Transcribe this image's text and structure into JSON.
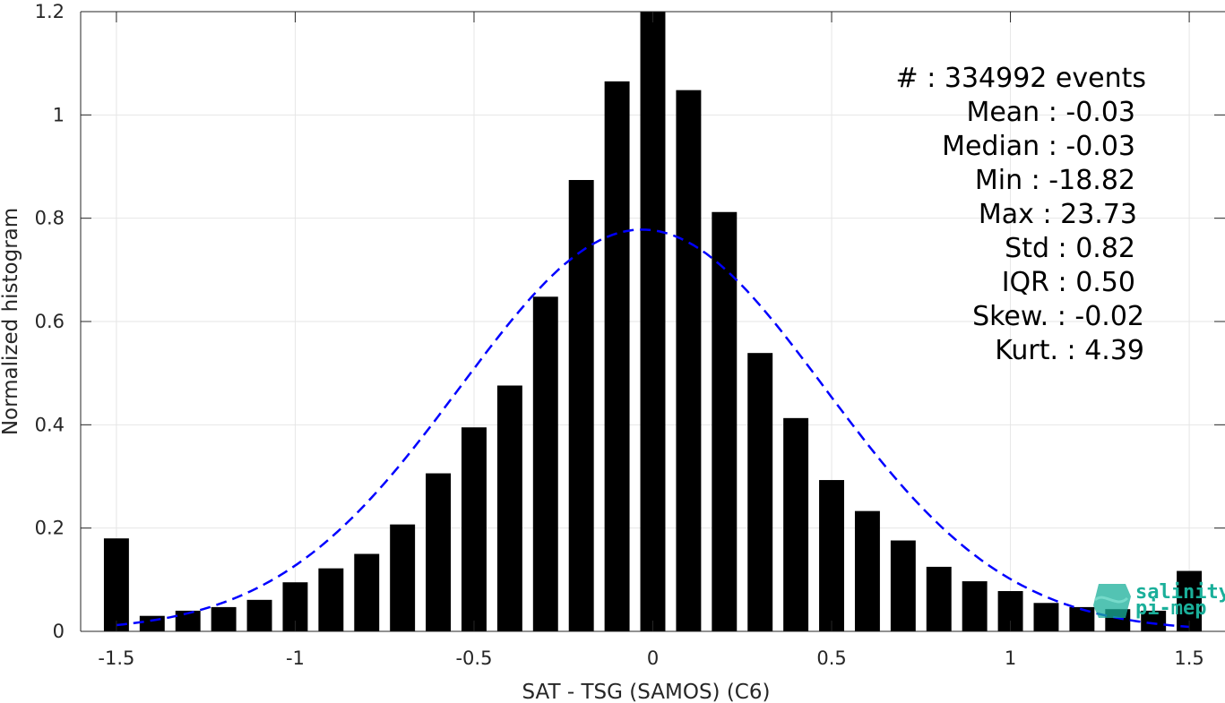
{
  "chart_data": {
    "type": "bar",
    "xlabel": "SAT - TSG (SAMOS) (C6)",
    "ylabel": "Normalized histogram",
    "xlim": [
      -1.6,
      1.6
    ],
    "ylim": [
      0,
      1.2
    ],
    "xticks": [
      -1.5,
      -1,
      -0.5,
      0,
      0.5,
      1,
      1.5
    ],
    "xtick_labels": [
      "-1.5",
      "-1",
      "-0.5",
      "0",
      "0.5",
      "1",
      "1.5"
    ],
    "yticks": [
      0,
      0.2,
      0.4,
      0.6,
      0.8,
      1,
      1.2
    ],
    "ytick_labels": [
      "0",
      "0.2",
      "0.4",
      "0.6",
      "0.8",
      "1",
      "1.2"
    ],
    "grid": true,
    "bar_color": "#000000",
    "bin_centers": [
      -1.5,
      -1.4,
      -1.3,
      -1.2,
      -1.1,
      -1.0,
      -0.9,
      -0.8,
      -0.7,
      -0.6,
      -0.5,
      -0.4,
      -0.3,
      -0.2,
      -0.1,
      0.0,
      0.1,
      0.2,
      0.3,
      0.4,
      0.5,
      0.6,
      0.7,
      0.8,
      0.9,
      1.0,
      1.1,
      1.2,
      1.3,
      1.4,
      1.5
    ],
    "values": [
      0.18,
      0.03,
      0.04,
      0.047,
      0.061,
      0.095,
      0.122,
      0.15,
      0.207,
      0.306,
      0.395,
      0.476,
      0.648,
      0.874,
      1.065,
      1.2,
      1.048,
      0.812,
      0.539,
      0.413,
      0.293,
      0.233,
      0.176,
      0.125,
      0.097,
      0.078,
      0.055,
      0.047,
      0.043,
      0.04,
      0.117
    ],
    "fit": {
      "type": "gaussian",
      "mean": -0.03,
      "std": 0.51,
      "peak": 0.778,
      "color": "#0000ff",
      "style": "dashed",
      "x_range": [
        -1.5,
        1.5
      ]
    },
    "stats_lines": [
      "#  : 334992 events",
      "Mean : -0.03",
      "Median : -0.03",
      "Min : -18.82",
      "Max : 23.73",
      "Std : 0.82",
      "IQR : 0.50",
      "Skew. : -0.02",
      "Kurt. : 4.39"
    ],
    "logo": {
      "line1": "salinity",
      "line2": "pi-mep",
      "color": "#1aaf9a"
    }
  }
}
